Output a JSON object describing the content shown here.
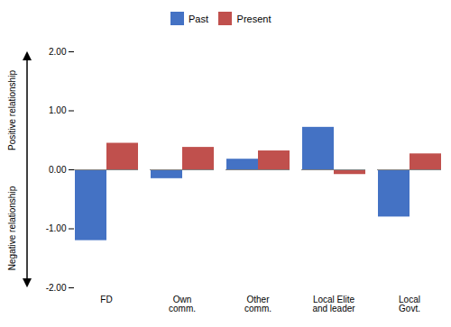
{
  "chart_data": {
    "type": "bar",
    "categories": [
      "FD",
      "Own\ncomm.",
      "Other\ncomm.",
      "Local Elite\nand leader",
      "Local\nGovt."
    ],
    "series": [
      {
        "name": "Past",
        "color": "#4472C4",
        "values": [
          -1.2,
          -0.15,
          0.18,
          0.72,
          -0.8
        ]
      },
      {
        "name": "Present",
        "color": "#C0504D",
        "values": [
          0.45,
          0.38,
          0.32,
          -0.08,
          0.27
        ]
      }
    ],
    "ylim": [
      -2.0,
      2.0
    ],
    "yticks": [
      {
        "value": -2.0,
        "label": "-2.00"
      },
      {
        "value": -1.0,
        "label": "-1.00"
      },
      {
        "value": 0.0,
        "label": "0.00"
      },
      {
        "value": 1.0,
        "label": "1.00"
      },
      {
        "value": 2.0,
        "label": "2.00"
      }
    ],
    "annotations": [
      "Positive relationship",
      "Negative relationship"
    ],
    "legend": "top",
    "grid": false
  }
}
